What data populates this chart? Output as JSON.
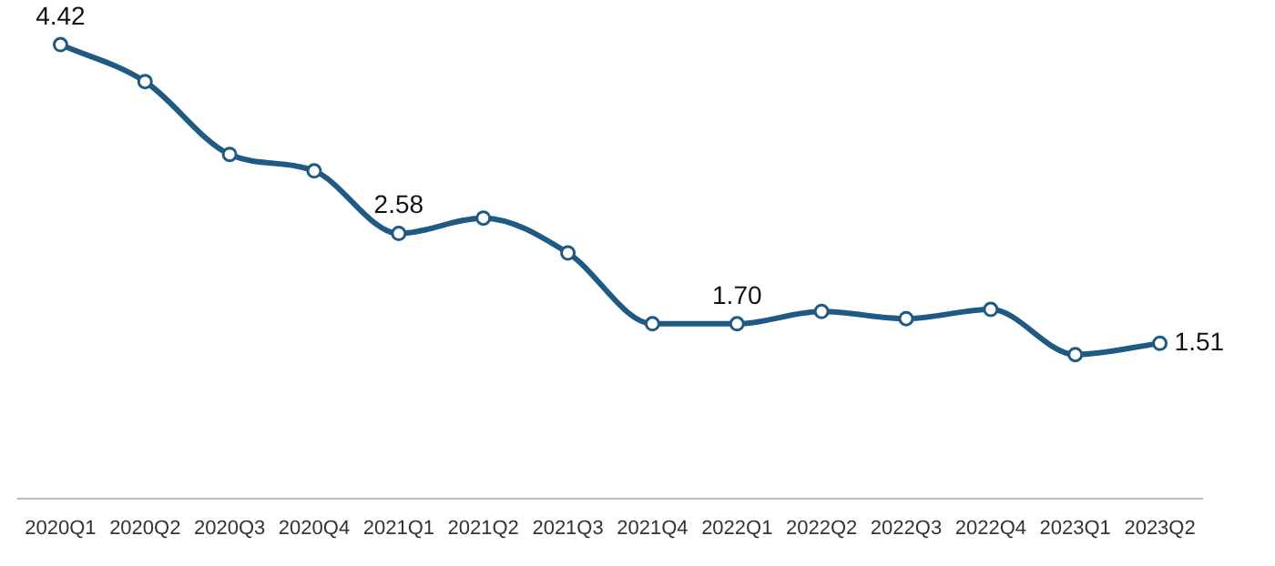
{
  "chart_data": {
    "type": "line",
    "categories": [
      "2020Q1",
      "2020Q2",
      "2020Q3",
      "2020Q4",
      "2021Q1",
      "2021Q2",
      "2021Q3",
      "2021Q4",
      "2022Q1",
      "2022Q2",
      "2022Q3",
      "2022Q4",
      "2023Q1",
      "2023Q2"
    ],
    "values": [
      4.42,
      4.06,
      3.35,
      3.19,
      2.58,
      2.73,
      2.39,
      1.7,
      1.7,
      1.82,
      1.75,
      1.84,
      1.4,
      1.51
    ],
    "value_labels": [
      "4.42",
      null,
      null,
      null,
      "2.58",
      null,
      null,
      null,
      "1.70",
      null,
      null,
      null,
      null,
      "1.51"
    ],
    "color": "#1f5a85",
    "tick_labels": "x",
    "marker": "circle",
    "line_style": "solid",
    "grid": false,
    "legend": false
  }
}
